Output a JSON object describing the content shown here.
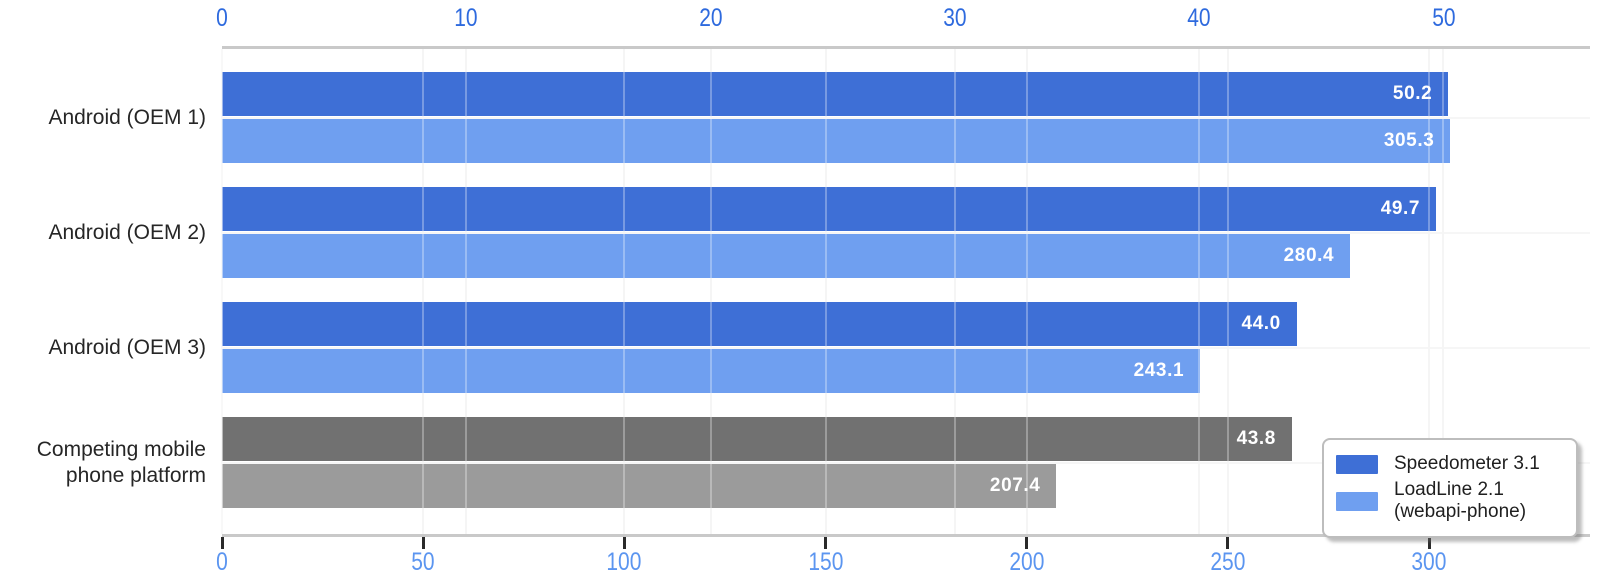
{
  "chart_data": {
    "type": "bar",
    "orientation": "horizontal",
    "categories": [
      "Android (OEM 1)",
      "Android (OEM 2)",
      "Android (OEM 3)",
      "Competing mobile\nphone platform"
    ],
    "series": [
      {
        "name": "Speedometer 3.1",
        "axis": "top",
        "values": [
          50.2,
          49.7,
          44.0,
          43.8
        ]
      },
      {
        "name": "LoadLine 2.1 (webapi-phone)",
        "axis": "bottom",
        "values": [
          305.3,
          280.4,
          243.1,
          207.4
        ]
      }
    ],
    "bar_colors": {
      "speedometer": [
        "#3e6fd6",
        "#3e6fd6",
        "#3e6fd6",
        "#717171"
      ],
      "loadline": [
        "#6f9ff0",
        "#6f9ff0",
        "#6f9ff0",
        "#9b9b9b"
      ]
    },
    "value_label_color": "#ffffff",
    "top_axis": {
      "ticks": [
        0,
        10,
        20,
        30,
        40,
        50
      ],
      "max": 56,
      "label_color": "#2e6ade"
    },
    "bottom_axis": {
      "ticks": [
        0,
        50,
        100,
        150,
        200,
        250,
        300
      ],
      "max": 340,
      "label_color": "#5b95f0"
    },
    "grid": true,
    "legend": {
      "position": "lower-right",
      "entries": [
        {
          "label": "Speedometer 3.1",
          "color": "#3e6fd6"
        },
        {
          "label": "LoadLine 2.1\n(webapi-phone)",
          "color": "#6f9ff0"
        }
      ]
    }
  }
}
